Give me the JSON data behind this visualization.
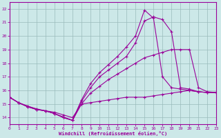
{
  "xlabel": "Windchill (Refroidissement éolien,°C)",
  "bg_color": "#cce8e8",
  "line_color": "#990099",
  "grid_color": "#99bbbb",
  "xlim": [
    0,
    23
  ],
  "ylim": [
    13.5,
    22.5
  ],
  "xticks": [
    0,
    1,
    2,
    3,
    4,
    5,
    6,
    7,
    8,
    9,
    10,
    11,
    12,
    13,
    14,
    15,
    16,
    17,
    18,
    19,
    20,
    21,
    22,
    23
  ],
  "yticks": [
    14,
    15,
    16,
    17,
    18,
    19,
    20,
    21,
    22
  ],
  "series": [
    {
      "x": [
        0,
        1,
        2,
        3,
        4,
        5,
        6,
        7,
        8,
        9,
        10,
        11,
        12,
        13,
        14,
        15,
        16,
        17,
        18,
        19,
        20,
        21,
        22,
        23
      ],
      "y": [
        15.5,
        15.1,
        14.8,
        14.6,
        14.5,
        14.4,
        14.2,
        14.0,
        15.0,
        15.1,
        15.2,
        15.3,
        15.4,
        15.5,
        15.5,
        15.5,
        15.6,
        15.7,
        15.8,
        15.9,
        16.0,
        15.9,
        15.85,
        15.85
      ]
    },
    {
      "x": [
        0,
        1,
        2,
        3,
        4,
        5,
        6,
        7,
        8,
        9,
        10,
        11,
        12,
        13,
        14,
        15,
        16,
        17,
        18,
        19,
        20,
        21,
        22,
        23
      ],
      "y": [
        15.5,
        15.1,
        14.8,
        14.6,
        14.5,
        14.3,
        14.0,
        13.8,
        15.0,
        15.8,
        16.3,
        16.8,
        17.2,
        17.6,
        18.0,
        18.4,
        18.6,
        18.8,
        19.0,
        19.0,
        19.0,
        16.2,
        15.9,
        15.85
      ]
    },
    {
      "x": [
        0,
        1,
        2,
        3,
        4,
        5,
        6,
        7,
        8,
        9,
        10,
        11,
        12,
        13,
        14,
        15,
        16,
        17,
        18,
        19,
        20,
        21,
        22,
        23
      ],
      "y": [
        15.5,
        15.1,
        14.85,
        14.6,
        14.5,
        14.3,
        14.0,
        13.8,
        15.2,
        16.2,
        17.0,
        17.5,
        18.0,
        18.5,
        19.5,
        21.1,
        21.4,
        21.2,
        20.3,
        16.2,
        16.1,
        15.9,
        15.85,
        15.85
      ]
    },
    {
      "x": [
        0,
        1,
        2,
        3,
        4,
        5,
        6,
        7,
        8,
        9,
        10,
        11,
        12,
        13,
        14,
        15,
        16,
        17,
        18,
        19,
        20,
        21,
        22,
        23
      ],
      "y": [
        15.5,
        15.1,
        14.85,
        14.65,
        14.5,
        14.3,
        14.05,
        13.8,
        15.3,
        16.5,
        17.3,
        17.9,
        18.5,
        19.2,
        20.0,
        21.9,
        21.3,
        17.0,
        16.2,
        16.1,
        16.0,
        15.9,
        15.85,
        15.85
      ]
    }
  ]
}
